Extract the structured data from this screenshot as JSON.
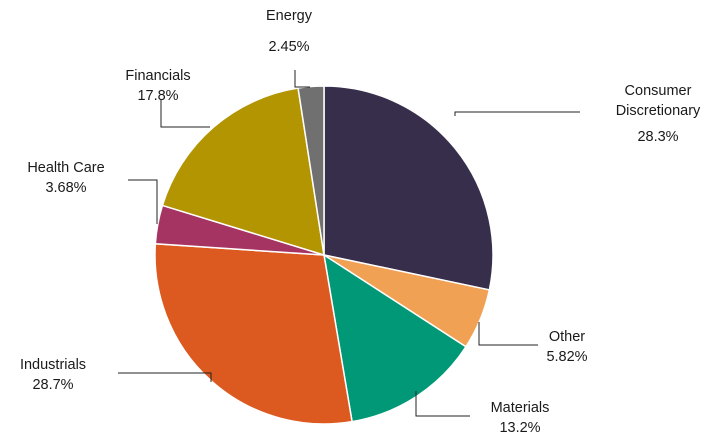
{
  "chart_data": {
    "type": "pie",
    "title": "",
    "start_angle_deg": 0,
    "direction": "clockwise",
    "legend": "none",
    "slices": [
      {
        "label": "Consumer Discretionary",
        "label_lines": [
          "Consumer",
          "Discretionary"
        ],
        "value": 28.3,
        "value_label": "28.3%",
        "color": "#372e4c"
      },
      {
        "label": "Other",
        "label_lines": [
          "Other"
        ],
        "value": 5.82,
        "value_label": "5.82%",
        "color": "#f0a154"
      },
      {
        "label": "Materials",
        "label_lines": [
          "Materials"
        ],
        "value": 13.2,
        "value_label": "13.2%",
        "color": "#009876"
      },
      {
        "label": "Industrials",
        "label_lines": [
          "Industrials"
        ],
        "value": 28.7,
        "value_label": "28.7%",
        "color": "#dc5a20"
      },
      {
        "label": "Health Care",
        "label_lines": [
          "Health Care"
        ],
        "value": 3.68,
        "value_label": "3.68%",
        "color": "#a53462"
      },
      {
        "label": "Financials",
        "label_lines": [
          "Financials"
        ],
        "value": 17.8,
        "value_label": "17.8%",
        "color": "#b39401"
      },
      {
        "label": "Energy",
        "label_lines": [
          "Energy"
        ],
        "value": 2.45,
        "value_label": "2.45%",
        "color": "#707070"
      }
    ]
  }
}
